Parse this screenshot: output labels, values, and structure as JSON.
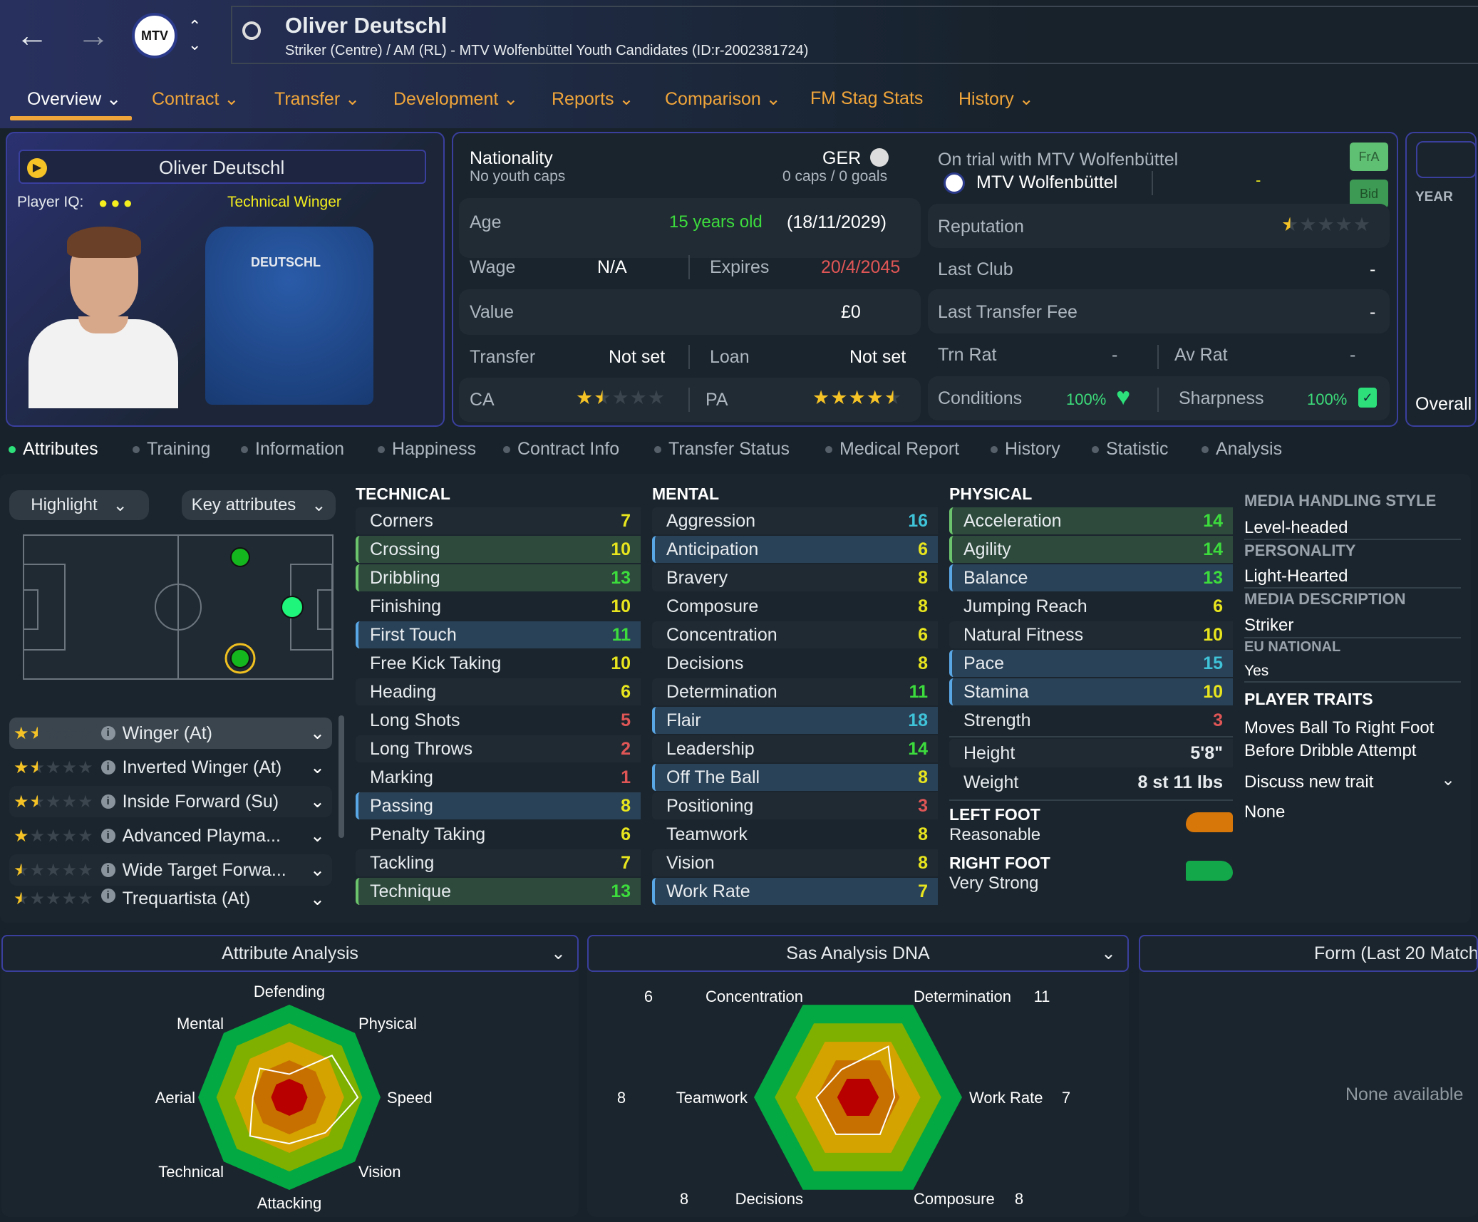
{
  "header": {
    "back_icon": "arrow-left-icon",
    "forward_icon": "arrow-right-icon",
    "club_badge": "MTV",
    "player_name": "Oliver Deutschl",
    "subtitle": "Striker (Centre) / AM (RL) - MTV Wolfenbüttel Youth Candidates (ID:r-2002381724)"
  },
  "tabs": [
    {
      "label": "Overview ⌄"
    },
    {
      "label": "Contract ⌄"
    },
    {
      "label": "Transfer ⌄"
    },
    {
      "label": "Development ⌄"
    },
    {
      "label": "Reports ⌄"
    },
    {
      "label": "Comparison ⌄"
    },
    {
      "label": "FM Stag Stats"
    },
    {
      "label": "History ⌄"
    }
  ],
  "player_card": {
    "name": "Oliver Deutschl",
    "iq_label": "Player IQ:",
    "iq_dots": 3,
    "archetype": "Technical Winger",
    "shirt_name": "DEUTSCHL"
  },
  "info": {
    "nationality_label": "Nationality",
    "youth_caps": "No youth caps",
    "nation": "GER",
    "caps": "0 caps / 0 goals",
    "age_label": "Age",
    "age": "15 years old",
    "dob": "(18/11/2029)",
    "wage_label": "Wage",
    "wage": "N/A",
    "expires_label": "Expires",
    "expires": "20/4/2045",
    "value_label": "Value",
    "value": "£0",
    "transfer_label": "Transfer",
    "transfer": "Not set",
    "loan_label": "Loan",
    "loan": "Not set",
    "ca_label": "CA",
    "ca_stars": 1.5,
    "pa_label": "PA",
    "pa_stars": 4.5
  },
  "club_info": {
    "trial": "On trial with MTV Wolfenbüttel",
    "club": "MTV Wolfenbüttel",
    "club_dash": "-",
    "fra": "FrA",
    "bid": "Bid",
    "reputation_label": "Reputation",
    "reputation_stars": 0.5,
    "last_club_label": "Last Club",
    "last_club": "-",
    "last_fee_label": "Last Transfer Fee",
    "last_fee": "-",
    "trn_rat_label": "Trn Rat",
    "trn_rat": "-",
    "av_rat_label": "Av Rat",
    "av_rat": "-",
    "conditions_label": "Conditions",
    "conditions": "100%",
    "sharpness_label": "Sharpness",
    "sharpness": "100%"
  },
  "overall_panel": {
    "year": "YEAR",
    "overall": "Overall"
  },
  "subtabs": [
    {
      "label": "Attributes"
    },
    {
      "label": "Training"
    },
    {
      "label": "Information"
    },
    {
      "label": "Happiness"
    },
    {
      "label": "Contract Info"
    },
    {
      "label": "Transfer Status"
    },
    {
      "label": "Medical Report"
    },
    {
      "label": "History"
    },
    {
      "label": "Statistic"
    },
    {
      "label": "Analysis"
    }
  ],
  "controls": {
    "highlight": "Highlight",
    "key_attributes": "Key attributes"
  },
  "roles": [
    {
      "name": "Winger (At)",
      "stars": 1.5
    },
    {
      "name": "Inverted Winger (At)",
      "stars": 1.5
    },
    {
      "name": "Inside Forward (Su)",
      "stars": 1.5
    },
    {
      "name": "Advanced Playma...",
      "stars": 1
    },
    {
      "name": "Wide Target Forwa...",
      "stars": 0.5
    },
    {
      "name": "Trequartista (At)",
      "stars": 0.5
    }
  ],
  "technical": {
    "title": "TECHNICAL",
    "items": [
      {
        "name": "Corners",
        "value": 7
      },
      {
        "name": "Crossing",
        "value": 10,
        "hl": "g"
      },
      {
        "name": "Dribbling",
        "value": 13,
        "hl": "g"
      },
      {
        "name": "Finishing",
        "value": 10
      },
      {
        "name": "First Touch",
        "value": 11,
        "hl": "b"
      },
      {
        "name": "Free Kick Taking",
        "value": 10
      },
      {
        "name": "Heading",
        "value": 6
      },
      {
        "name": "Long Shots",
        "value": 5
      },
      {
        "name": "Long Throws",
        "value": 2
      },
      {
        "name": "Marking",
        "value": 1
      },
      {
        "name": "Passing",
        "value": 8,
        "hl": "b"
      },
      {
        "name": "Penalty Taking",
        "value": 6
      },
      {
        "name": "Tackling",
        "value": 7
      },
      {
        "name": "Technique",
        "value": 13,
        "hl": "g"
      }
    ]
  },
  "mental": {
    "title": "MENTAL",
    "items": [
      {
        "name": "Aggression",
        "value": 16
      },
      {
        "name": "Anticipation",
        "value": 6,
        "hl": "b"
      },
      {
        "name": "Bravery",
        "value": 8
      },
      {
        "name": "Composure",
        "value": 8
      },
      {
        "name": "Concentration",
        "value": 6
      },
      {
        "name": "Decisions",
        "value": 8
      },
      {
        "name": "Determination",
        "value": 11
      },
      {
        "name": "Flair",
        "value": 18,
        "hl": "b"
      },
      {
        "name": "Leadership",
        "value": 14
      },
      {
        "name": "Off The Ball",
        "value": 8,
        "hl": "b"
      },
      {
        "name": "Positioning",
        "value": 3
      },
      {
        "name": "Teamwork",
        "value": 8
      },
      {
        "name": "Vision",
        "value": 8
      },
      {
        "name": "Work Rate",
        "value": 7,
        "hl": "b"
      }
    ]
  },
  "physical": {
    "title": "PHYSICAL",
    "items": [
      {
        "name": "Acceleration",
        "value": 14,
        "hl": "g"
      },
      {
        "name": "Agility",
        "value": 14,
        "hl": "g"
      },
      {
        "name": "Balance",
        "value": 13,
        "hl": "b"
      },
      {
        "name": "Jumping Reach",
        "value": 6
      },
      {
        "name": "Natural Fitness",
        "value": 10
      },
      {
        "name": "Pace",
        "value": 15,
        "hl": "b"
      },
      {
        "name": "Stamina",
        "value": 10,
        "hl": "b"
      },
      {
        "name": "Strength",
        "value": 3
      }
    ],
    "height_label": "Height",
    "height": "5'8\"",
    "weight_label": "Weight",
    "weight": "8 st 11 lbs",
    "left_foot_label": "LEFT FOOT",
    "left_foot": "Reasonable",
    "right_foot_label": "RIGHT FOOT",
    "right_foot": "Very Strong"
  },
  "profile": {
    "media_style_label": "MEDIA HANDLING STYLE",
    "media_style": "Level-headed",
    "personality_label": "PERSONALITY",
    "personality": "Light-Hearted",
    "media_desc_label": "MEDIA DESCRIPTION",
    "media_desc": "Striker",
    "eu_label": "EU NATIONAL",
    "eu": "Yes",
    "traits_label": "PLAYER TRAITS",
    "traits": [
      "Moves Ball To Right Foot",
      "Before Dribble Attempt"
    ],
    "discuss": "Discuss new trait",
    "none": "None"
  },
  "panels": {
    "attr_analysis": "Attribute Analysis",
    "dna": "Sas Analysis DNA",
    "form": "Form (Last 20 Match",
    "form_empty": "None available"
  },
  "colors": {
    "accent": "#f0a53a",
    "border": "#3a3f9e",
    "high": "#3ddc3d",
    "mid": "#e8e51e",
    "low": "#e05656",
    "top": "#3fc3d9"
  },
  "chart_data": [
    {
      "type": "radar",
      "categories": [
        "Defending",
        "Physical",
        "Speed",
        "Vision",
        "Attacking",
        "Technical",
        "Aerial",
        "Mental"
      ],
      "values": [
        5,
        13,
        15,
        11,
        10,
        12,
        8,
        9
      ],
      "range": [
        0,
        20
      ]
    },
    {
      "type": "radar",
      "categories": [
        "Concentration",
        "Determination",
        "Work Rate",
        "Composure",
        "Decisions",
        "Teamwork"
      ],
      "values": [
        6,
        11,
        7,
        8,
        8,
        8
      ],
      "range": [
        0,
        20
      ]
    }
  ]
}
